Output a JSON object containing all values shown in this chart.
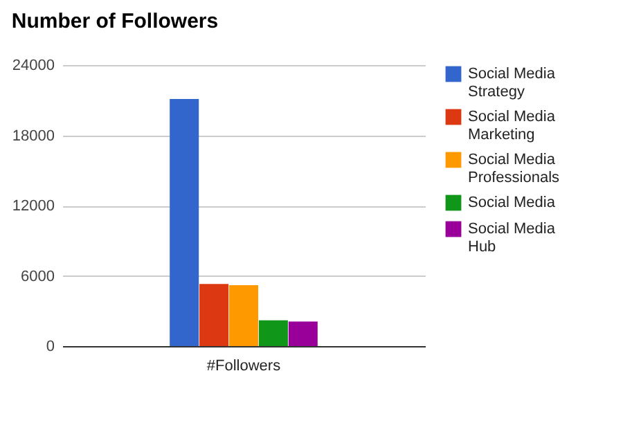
{
  "chart_data": {
    "type": "bar",
    "title": "Number of Followers",
    "categories": [
      "#Followers"
    ],
    "series": [
      {
        "name": "Social Media Strategy",
        "color": "#3366cc",
        "values": [
          21100
        ]
      },
      {
        "name": "Social Media Marketing",
        "color": "#dc3912",
        "values": [
          5300
        ]
      },
      {
        "name": "Social Media Professionals",
        "color": "#ff9900",
        "values": [
          5200
        ]
      },
      {
        "name": "Social Media",
        "color": "#109618",
        "values": [
          2200
        ]
      },
      {
        "name": "Social Media Hub",
        "color": "#990099",
        "values": [
          2100
        ]
      }
    ],
    "ylim": [
      0,
      24000
    ],
    "yticks": [
      0,
      6000,
      12000,
      18000,
      24000
    ],
    "grid": "y",
    "legend": "right"
  }
}
